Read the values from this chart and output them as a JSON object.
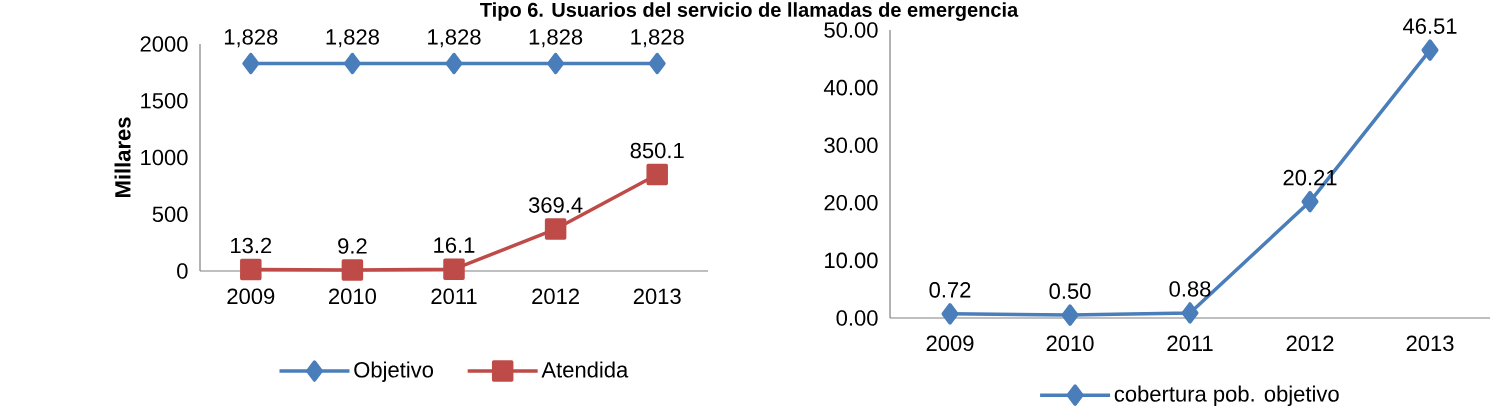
{
  "chart_data": [
    {
      "type": "line",
      "title": "Tipo 6. Usuarios del servicio de llamadas de emergencia",
      "ylabel": "Millares",
      "categories": [
        "2009",
        "2010",
        "2011",
        "2012",
        "2013"
      ],
      "ylim": [
        0,
        2000
      ],
      "yticks": [
        0,
        500,
        1000,
        1500,
        2000
      ],
      "legend": "bottom",
      "grid": false,
      "series": [
        {
          "name": "Objetivo",
          "color": "#4a7ebb",
          "marker": "diamond",
          "values": [
            1828,
            1828,
            1828,
            1828,
            1828
          ],
          "value_labels": [
            "1,828",
            "1,828",
            "1,828",
            "1,828",
            "1,828"
          ]
        },
        {
          "name": "Atendida",
          "color": "#be4b48",
          "marker": "square",
          "values": [
            13.2,
            9.2,
            16.1,
            369.4,
            850.1
          ],
          "value_labels": [
            "13.2",
            "9.2",
            "16.1",
            "369.4",
            "850.1"
          ]
        }
      ]
    },
    {
      "type": "line",
      "categories": [
        "2009",
        "2010",
        "2011",
        "2012",
        "2013"
      ],
      "ylim": [
        0,
        50
      ],
      "yticks": [
        {
          "value": 0,
          "label": "0.00"
        },
        {
          "value": 10,
          "label": "10.00"
        },
        {
          "value": 20,
          "label": "20.00"
        },
        {
          "value": 30,
          "label": "30.00"
        },
        {
          "value": 40,
          "label": "40.00"
        },
        {
          "value": 50,
          "label": "50.00"
        }
      ],
      "legend": "bottom",
      "grid": false,
      "series": [
        {
          "name": "cobertura pob. objetivo",
          "color": "#4a7ebb",
          "marker": "diamond",
          "values": [
            0.72,
            0.5,
            0.88,
            20.21,
            46.51
          ],
          "value_labels": [
            "0.72",
            "0.50",
            "0.88",
            "20.21",
            "46.51"
          ]
        }
      ]
    }
  ]
}
